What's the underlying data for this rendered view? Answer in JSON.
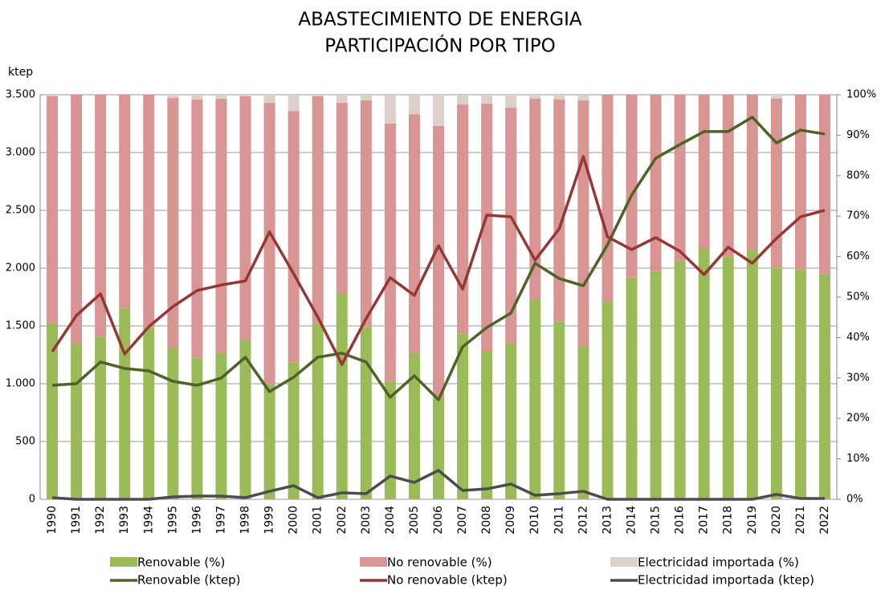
{
  "chart_data": {
    "type": "bar",
    "title": "ABASTECIMIENTO DE ENERGIA",
    "subtitle": "PARTICIPACIÓN POR TIPO",
    "ylabel": "ktep",
    "categories": [
      "1990",
      "1991",
      "1992",
      "1993",
      "1994",
      "1995",
      "1996",
      "1997",
      "1998",
      "1999",
      "2000",
      "2001",
      "2002",
      "2003",
      "2004",
      "2005",
      "2006",
      "2007",
      "2008",
      "2009",
      "2010",
      "2011",
      "2012",
      "2013",
      "2014",
      "2015",
      "2016",
      "2017",
      "2018",
      "2019",
      "2020",
      "2021",
      "2022"
    ],
    "series": [
      {
        "name": "Renovable (%)",
        "type": "bar",
        "axis": "y2",
        "color": "#9bbb59",
        "values": [
          43.5,
          38.7,
          40.1,
          47.2,
          42.5,
          37.5,
          34.9,
          36.1,
          39.3,
          28.4,
          33.9,
          43.5,
          50.8,
          42.5,
          29.2,
          36.1,
          25.0,
          40.9,
          36.7,
          38.5,
          49.4,
          44.0,
          37.7,
          48.8,
          54.8,
          56.5,
          58.9,
          62.1,
          59.9,
          61.7,
          57.3,
          56.7,
          55.6
        ]
      },
      {
        "name": "No renovable (%)",
        "type": "bar",
        "axis": "y2",
        "color": "#d99594",
        "values": [
          56.1,
          61.3,
          59.9,
          52.8,
          57.5,
          61.7,
          63.9,
          62.9,
          60.3,
          69.6,
          62.1,
          56.1,
          47.2,
          56.1,
          63.7,
          59.1,
          67.3,
          56.7,
          61.1,
          58.3,
          49.6,
          54.8,
          60.9,
          51.2,
          45.2,
          43.5,
          41.1,
          37.9,
          40.1,
          38.3,
          41.7,
          43.3,
          44.4
        ]
      },
      {
        "name": "Electricidad importada (%)",
        "type": "bar",
        "axis": "y2",
        "color": "#ddd0cb",
        "values": [
          0.4,
          0,
          0,
          0,
          0,
          0.8,
          1.2,
          1.0,
          0.4,
          2,
          4,
          0.4,
          2,
          1.4,
          7.1,
          4.8,
          7.7,
          2.4,
          2.2,
          3.2,
          1,
          1.2,
          1.4,
          0,
          0,
          0,
          0,
          0,
          0,
          0,
          1,
          0,
          0
        ]
      },
      {
        "name": "Renovable (ktep)",
        "type": "line",
        "color": "#4f6228",
        "values": [
          986,
          1000,
          1188,
          1132,
          1111,
          1021,
          986,
          1049,
          1229,
          931,
          1056,
          1229,
          1264,
          1188,
          882,
          1069,
          861,
          1319,
          1486,
          1611,
          2042,
          1910,
          1847,
          2201,
          2632,
          2951,
          3069,
          3181,
          3181,
          3306,
          3083,
          3194,
          3160
        ]
      },
      {
        "name": "No renovable (ktep)",
        "type": "line",
        "color": "#953735",
        "values": [
          1278,
          1590,
          1778,
          1257,
          1493,
          1667,
          1806,
          1854,
          1889,
          2313,
          1951,
          1576,
          1167,
          1563,
          1917,
          1764,
          2194,
          1819,
          2458,
          2444,
          2069,
          2340,
          2965,
          2271,
          2160,
          2264,
          2146,
          1944,
          2181,
          2042,
          2257,
          2444,
          2500
        ]
      },
      {
        "name": "Electricidad importada (ktep)",
        "type": "line",
        "color": "#4d4d4d",
        "values": [
          14,
          0,
          0,
          0,
          0,
          21,
          28,
          28,
          14,
          69,
          118,
          14,
          56,
          49,
          201,
          146,
          250,
          76,
          90,
          132,
          35,
          49,
          69,
          0,
          0,
          0,
          0,
          0,
          0,
          0,
          42,
          7,
          7
        ]
      }
    ],
    "ylim": [
      0,
      3500
    ],
    "yticks": [
      0,
      500,
      {
        "value": 1000,
        "label": "1.000"
      },
      {
        "value": 1500,
        "label": "1.500"
      },
      {
        "value": 2000,
        "label": "2.000"
      },
      {
        "value": 2500,
        "label": "2.500"
      },
      {
        "value": 3000,
        "label": "3.000"
      },
      {
        "value": 3500,
        "label": "3.500"
      }
    ],
    "y2lim": [
      0,
      100
    ],
    "y2ticks": [
      {
        "value": 0,
        "label": "0%"
      },
      {
        "value": 10,
        "label": "10%"
      },
      {
        "value": 20,
        "label": "20%"
      },
      {
        "value": 30,
        "label": "30%"
      },
      {
        "value": 40,
        "label": "40%"
      },
      {
        "value": 50,
        "label": "50%"
      },
      {
        "value": 60,
        "label": "60%"
      },
      {
        "value": 70,
        "label": "70%"
      },
      {
        "value": 80,
        "label": "80%"
      },
      {
        "value": 90,
        "label": "90%"
      },
      {
        "value": 100,
        "label": "100%"
      }
    ],
    "grid": true
  }
}
